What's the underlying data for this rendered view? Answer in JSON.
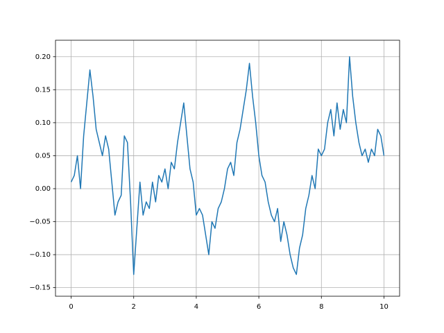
{
  "chart_data": {
    "type": "line",
    "x": [
      0,
      0.1,
      0.2,
      0.3,
      0.4,
      0.5,
      0.6,
      0.7,
      0.8,
      0.9,
      1,
      1.1,
      1.2,
      1.3,
      1.4,
      1.5,
      1.6,
      1.7,
      1.8,
      1.9,
      2,
      2.1,
      2.2,
      2.3,
      2.4,
      2.5,
      2.6,
      2.7,
      2.8,
      2.9,
      3,
      3.1,
      3.2,
      3.3,
      3.4,
      3.5,
      3.6,
      3.7,
      3.8,
      3.9,
      4,
      4.1,
      4.2,
      4.3,
      4.4,
      4.5,
      4.6,
      4.7,
      4.8,
      4.9,
      5,
      5.1,
      5.2,
      5.3,
      5.4,
      5.5,
      5.6,
      5.7,
      5.8,
      5.9,
      6,
      6.1,
      6.2,
      6.3,
      6.4,
      6.5,
      6.6,
      6.7,
      6.8,
      6.9,
      7,
      7.1,
      7.2,
      7.3,
      7.4,
      7.5,
      7.6,
      7.7,
      7.8,
      7.9,
      8,
      8.1,
      8.2,
      8.3,
      8.4,
      8.5,
      8.6,
      8.7,
      8.8,
      8.9,
      9,
      9.1,
      9.2,
      9.3,
      9.4,
      9.5,
      9.6,
      9.7,
      9.8,
      9.9,
      10
    ],
    "series": [
      {
        "color": "#1f77b4",
        "values": [
          0.01,
          0.02,
          0.05,
          0.0,
          0.08,
          0.13,
          0.18,
          0.14,
          0.09,
          0.07,
          0.05,
          0.08,
          0.06,
          0.01,
          -0.04,
          -0.02,
          -0.01,
          0.08,
          0.07,
          -0.02,
          -0.13,
          -0.06,
          0.01,
          -0.04,
          -0.02,
          -0.03,
          0.01,
          -0.02,
          0.02,
          0.01,
          0.03,
          0.0,
          0.04,
          0.03,
          0.07,
          0.1,
          0.13,
          0.08,
          0.03,
          0.01,
          -0.04,
          -0.03,
          -0.04,
          -0.07,
          -0.1,
          -0.05,
          -0.06,
          -0.03,
          -0.02,
          0.0,
          0.03,
          0.04,
          0.02,
          0.07,
          0.09,
          0.12,
          0.15,
          0.19,
          0.14,
          0.1,
          0.05,
          0.02,
          0.01,
          -0.02,
          -0.04,
          -0.05,
          -0.03,
          -0.08,
          -0.05,
          -0.07,
          -0.1,
          -0.12,
          -0.13,
          -0.09,
          -0.07,
          -0.03,
          -0.01,
          0.02,
          0.0,
          0.06,
          0.05,
          0.06,
          0.1,
          0.12,
          0.08,
          0.13,
          0.09,
          0.12,
          0.1,
          0.2,
          0.14,
          0.1,
          0.07,
          0.05,
          0.06,
          0.04,
          0.06,
          0.05,
          0.09,
          0.08,
          0.05
        ]
      }
    ],
    "xlim": [
      -0.5,
      10.5
    ],
    "xticks": [
      0,
      2,
      4,
      6,
      8,
      10
    ],
    "ylim": [
      -0.163,
      0.225
    ],
    "yticks": [
      {
        "value": -0.15,
        "label": "−0.15"
      },
      {
        "value": -0.1,
        "label": "−0.10"
      },
      {
        "value": -0.05,
        "label": "−0.05"
      },
      {
        "value": 0,
        "label": "0.00"
      },
      {
        "value": 0.05,
        "label": "0.05"
      },
      {
        "value": 0.1,
        "label": "0.10"
      },
      {
        "value": 0.15,
        "label": "0.15"
      },
      {
        "value": 0.2,
        "label": "0.20"
      }
    ],
    "grid": true
  }
}
